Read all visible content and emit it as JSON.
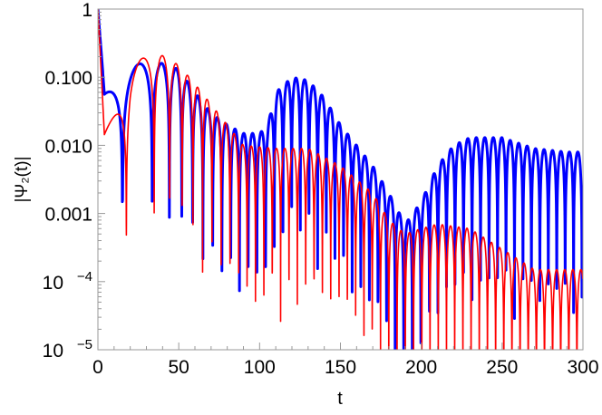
{
  "chart_data": {
    "type": "line",
    "xlabel": "t",
    "ylabel": "|Ψ₂(t)|",
    "xlim": [
      0,
      300
    ],
    "ylim": [
      1e-05,
      1
    ],
    "yscale": "log",
    "xticks": [
      "0",
      "50",
      "100",
      "150",
      "200",
      "250",
      "300"
    ],
    "xtick_values": [
      0,
      50,
      100,
      150,
      200,
      250,
      300
    ],
    "yticks": [
      {
        "value": 1,
        "label": "1"
      },
      {
        "value": 0.1,
        "label": "0.100"
      },
      {
        "value": 0.01,
        "label": "0.010"
      },
      {
        "value": 0.001,
        "label": "0.001"
      },
      {
        "value": 0.0001,
        "base": "10",
        "exp": "−4"
      },
      {
        "value": 1e-05,
        "base": "10",
        "exp": "−5"
      }
    ],
    "grid": false,
    "series": [
      {
        "color": "#0000ff",
        "envelope": [
          [
            0,
            1
          ],
          [
            4,
            0.06
          ],
          [
            15,
            0.15
          ],
          [
            30,
            0.16
          ],
          [
            40,
            0.16
          ],
          [
            50,
            0.13
          ],
          [
            60,
            0.06
          ],
          [
            70,
            0.03
          ],
          [
            80,
            0.02
          ],
          [
            90,
            0.015
          ],
          [
            100,
            0.015
          ],
          [
            105,
            0.02
          ],
          [
            110,
            0.06
          ],
          [
            120,
            0.1
          ],
          [
            130,
            0.09
          ],
          [
            140,
            0.05
          ],
          [
            150,
            0.02
          ],
          [
            160,
            0.01
          ],
          [
            170,
            0.005
          ],
          [
            180,
            0.002
          ],
          [
            190,
            0.0007
          ],
          [
            200,
            0.0015
          ],
          [
            210,
            0.005
          ],
          [
            220,
            0.01
          ],
          [
            230,
            0.013
          ],
          [
            250,
            0.013
          ],
          [
            270,
            0.009
          ],
          [
            290,
            0.008
          ],
          [
            300,
            0.008
          ]
        ],
        "period": [
          [
            0,
            36
          ],
          [
            20,
            22
          ],
          [
            35,
            12
          ],
          [
            50,
            7
          ],
          [
            80,
            5.4
          ],
          [
            300,
            5.2
          ]
        ],
        "trough_ratio": 0.012
      },
      {
        "color": "#ff0000",
        "envelope": [
          [
            0,
            1
          ],
          [
            4,
            0.015
          ],
          [
            20,
            0.17
          ],
          [
            38,
            0.22
          ],
          [
            50,
            0.15
          ],
          [
            60,
            0.08
          ],
          [
            70,
            0.04
          ],
          [
            80,
            0.02
          ],
          [
            90,
            0.01
          ],
          [
            110,
            0.009
          ],
          [
            130,
            0.009
          ],
          [
            150,
            0.005
          ],
          [
            170,
            0.002
          ],
          [
            180,
            0.0008
          ],
          [
            190,
            0.0005
          ],
          [
            200,
            0.0006
          ],
          [
            210,
            0.0007
          ],
          [
            230,
            0.0006
          ],
          [
            250,
            0.0003
          ],
          [
            270,
            0.00015
          ],
          [
            300,
            0.00015
          ]
        ],
        "period": [
          [
            0,
            46
          ],
          [
            25,
            18
          ],
          [
            40,
            9
          ],
          [
            60,
            6
          ],
          [
            90,
            5.2
          ],
          [
            300,
            5.0
          ]
        ],
        "trough_ratio": 0.01
      }
    ]
  }
}
